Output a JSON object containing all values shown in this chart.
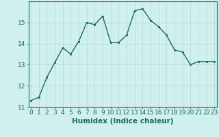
{
  "x": [
    0,
    1,
    2,
    3,
    4,
    5,
    6,
    7,
    8,
    9,
    10,
    11,
    12,
    13,
    14,
    15,
    16,
    17,
    18,
    19,
    20,
    21,
    22,
    23
  ],
  "y": [
    11.3,
    11.45,
    12.4,
    13.1,
    13.8,
    13.5,
    14.1,
    15.0,
    14.9,
    15.3,
    14.05,
    14.05,
    14.4,
    15.55,
    15.65,
    15.1,
    14.8,
    14.4,
    13.7,
    13.6,
    13.0,
    13.15,
    13.15,
    13.15
  ],
  "line_color": "#1a6b5e",
  "marker": "s",
  "marker_size": 2,
  "bg_color": "#cff0ec",
  "grid_color_major": "#b8dbd7",
  "grid_color_minor": "#b8dbd7",
  "xlabel": "Humidex (Indice chaleur)",
  "ylim": [
    11,
    16
  ],
  "xlim": [
    -0.3,
    23.3
  ],
  "yticks": [
    11,
    12,
    13,
    14,
    15
  ],
  "xticks": [
    0,
    1,
    2,
    3,
    4,
    5,
    6,
    7,
    8,
    9,
    10,
    11,
    12,
    13,
    14,
    15,
    16,
    17,
    18,
    19,
    20,
    21,
    22,
    23
  ],
  "tick_color": "#1a6b5e",
  "xlabel_fontsize": 7.5,
  "tick_fontsize": 6.5,
  "linewidth": 1.0
}
